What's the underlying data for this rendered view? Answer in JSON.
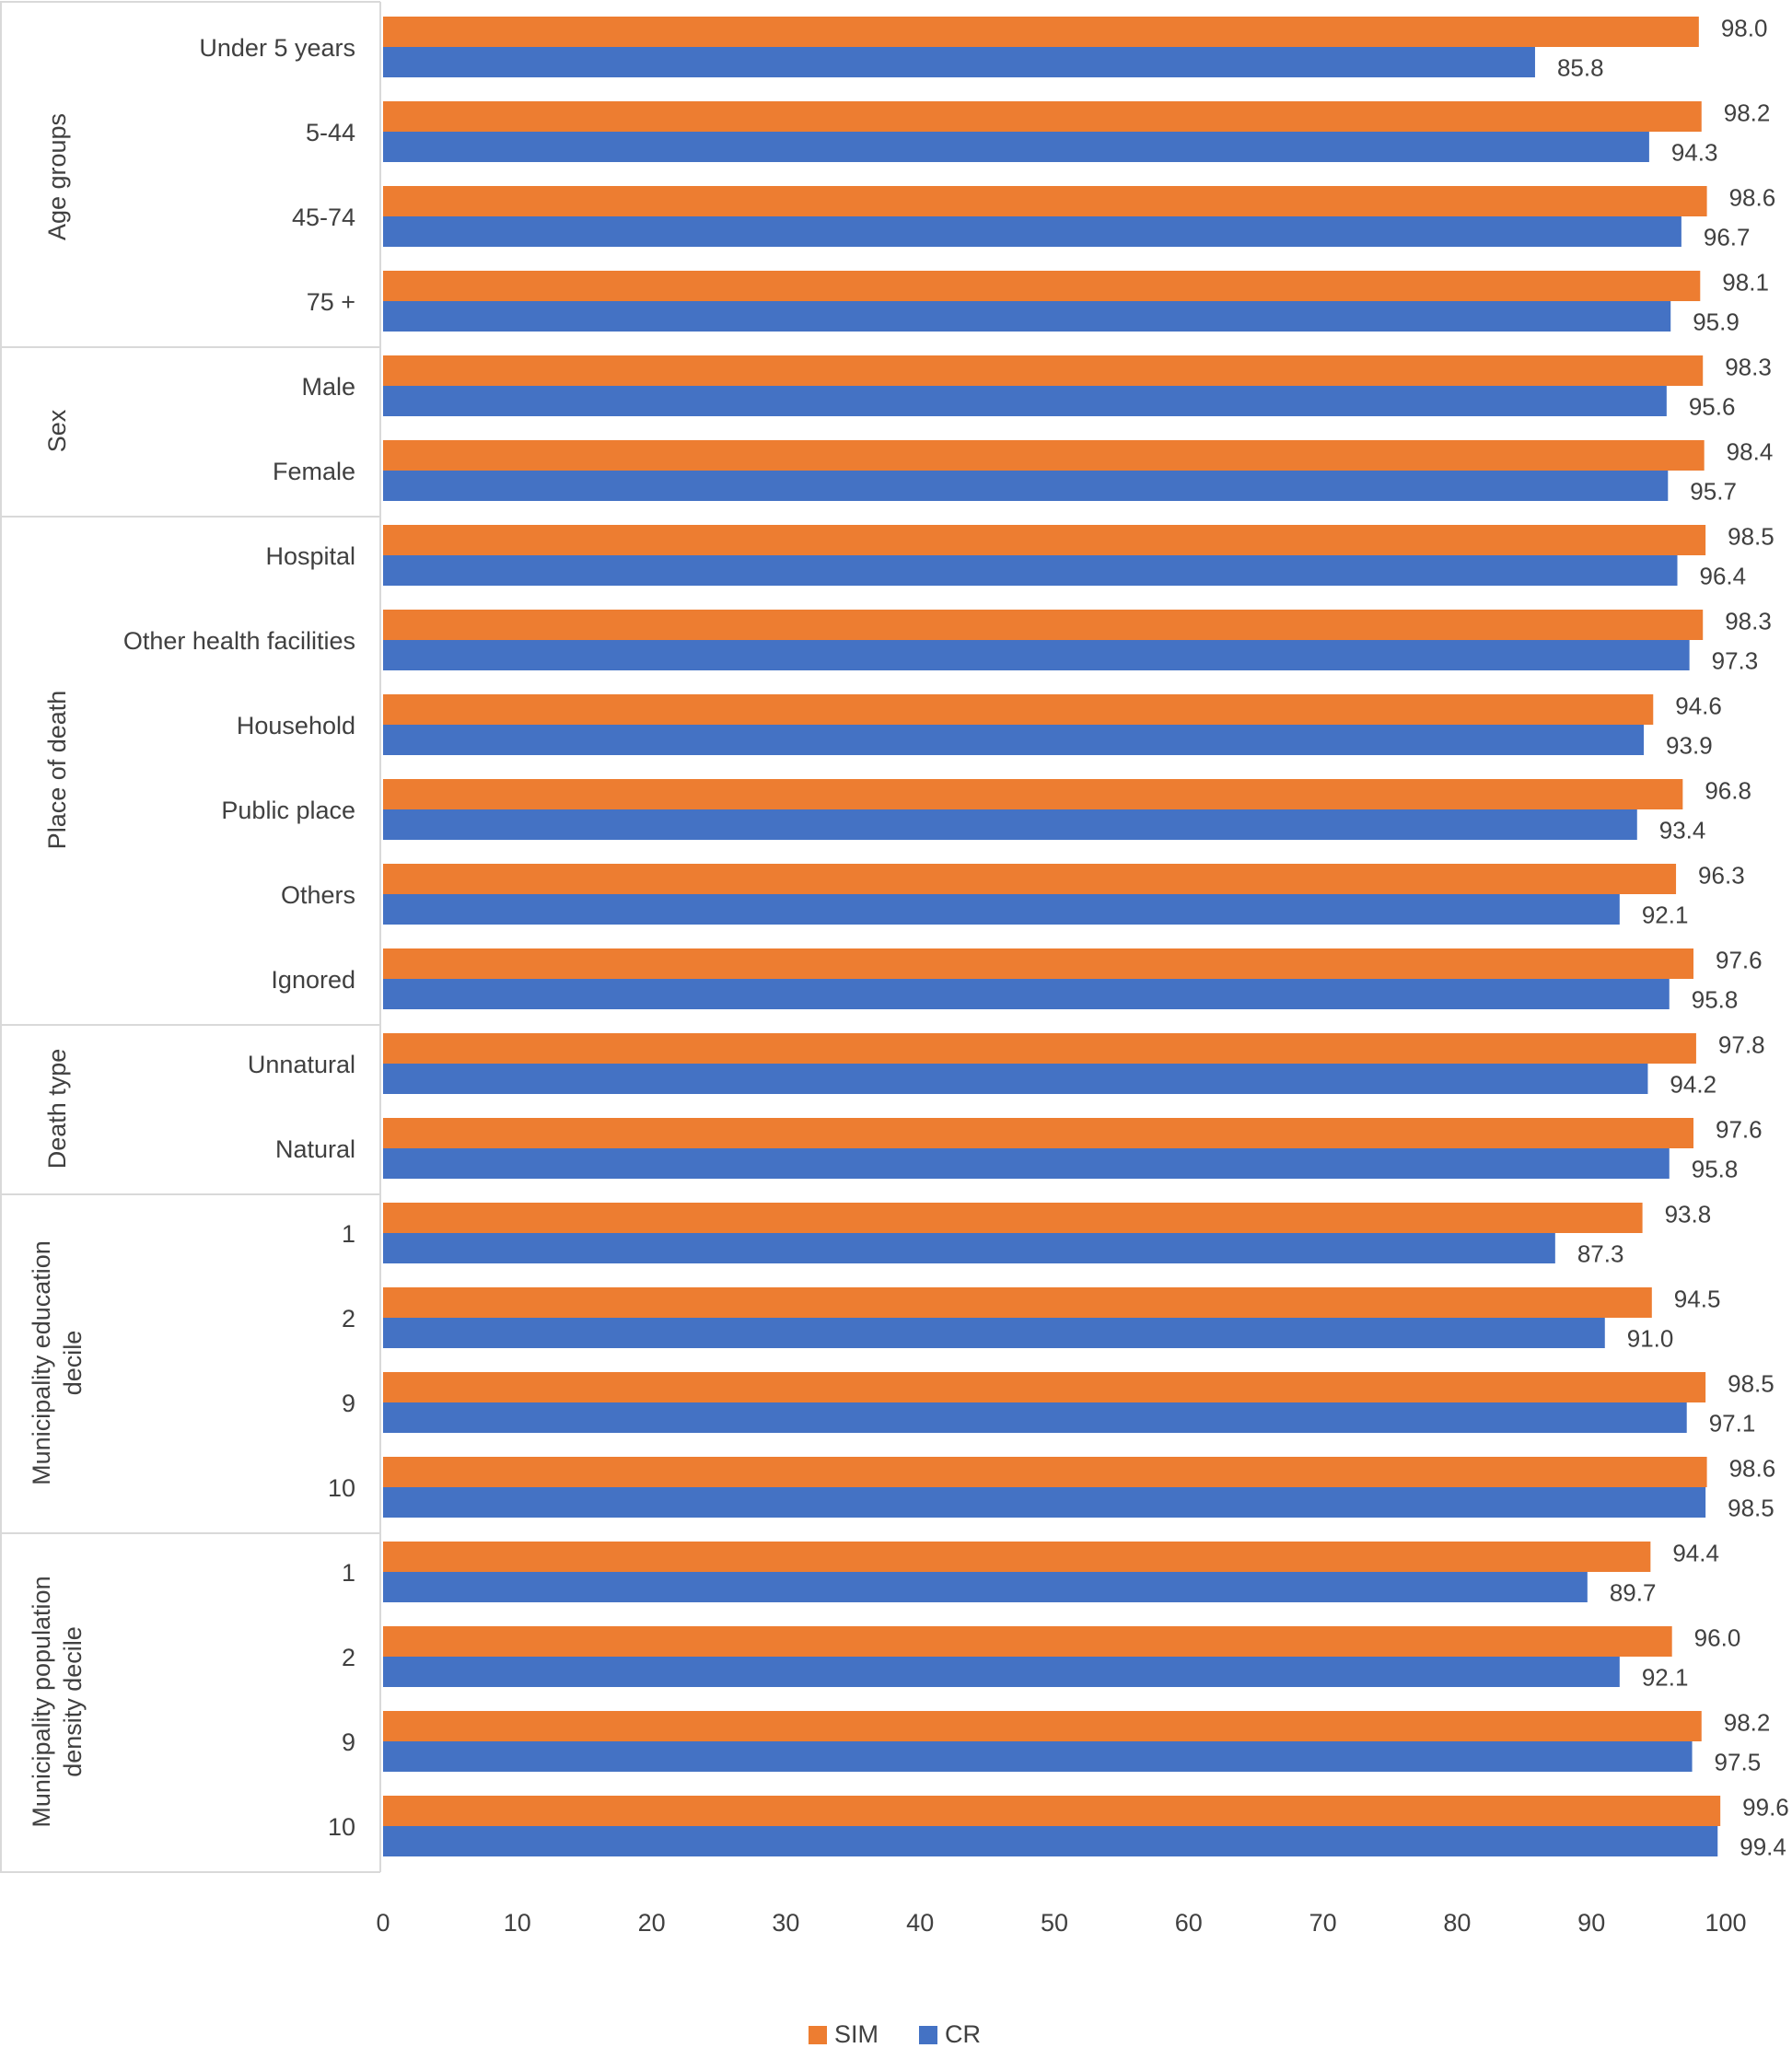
{
  "chart_data": {
    "type": "bar",
    "orientation": "horizontal",
    "xlim": [
      0,
      100
    ],
    "x_ticks": [
      "0",
      "10",
      "20",
      "30",
      "40",
      "50",
      "60",
      "70",
      "80",
      "90",
      "100"
    ],
    "legend": {
      "placement": "bottom",
      "entries": [
        "SIM",
        "CR"
      ]
    },
    "colors": {
      "SIM": "#ED7D31",
      "CR": "#4472C4"
    },
    "groups": [
      {
        "label": [
          "Age groups"
        ],
        "categories": [
          {
            "label": "Under 5 years",
            "SIM": 98.0,
            "CR": 85.8,
            "SIM_text": "98.0",
            "CR_text": "85.8"
          },
          {
            "label": "5-44",
            "SIM": 98.2,
            "CR": 94.3,
            "SIM_text": "98.2",
            "CR_text": "94.3"
          },
          {
            "label": "45-74",
            "SIM": 98.6,
            "CR": 96.7,
            "SIM_text": "98.6",
            "CR_text": "96.7"
          },
          {
            "label": "75 +",
            "SIM": 98.1,
            "CR": 95.9,
            "SIM_text": "98.1",
            "CR_text": "95.9"
          }
        ]
      },
      {
        "label": [
          "Sex"
        ],
        "categories": [
          {
            "label": "Male",
            "SIM": 98.3,
            "CR": 95.6,
            "SIM_text": "98.3",
            "CR_text": "95.6"
          },
          {
            "label": "Female",
            "SIM": 98.4,
            "CR": 95.7,
            "SIM_text": "98.4",
            "CR_text": "95.7"
          }
        ]
      },
      {
        "label": [
          "Place of death"
        ],
        "categories": [
          {
            "label": "Hospital",
            "SIM": 98.5,
            "CR": 96.4,
            "SIM_text": "98.5",
            "CR_text": "96.4"
          },
          {
            "label": "Other health facilities",
            "SIM": 98.3,
            "CR": 97.3,
            "SIM_text": "98.3",
            "CR_text": "97.3"
          },
          {
            "label": "Household",
            "SIM": 94.6,
            "CR": 93.9,
            "SIM_text": "94.6",
            "CR_text": "93.9"
          },
          {
            "label": "Public place",
            "SIM": 96.8,
            "CR": 93.4,
            "SIM_text": "96.8",
            "CR_text": "93.4"
          },
          {
            "label": "Others",
            "SIM": 96.3,
            "CR": 92.1,
            "SIM_text": "96.3",
            "CR_text": "92.1"
          },
          {
            "label": "Ignored",
            "SIM": 97.6,
            "CR": 95.8,
            "SIM_text": "97.6",
            "CR_text": "95.8"
          }
        ]
      },
      {
        "label": [
          "Death type"
        ],
        "categories": [
          {
            "label": "Unnatural",
            "SIM": 97.8,
            "CR": 94.2,
            "SIM_text": "97.8",
            "CR_text": "94.2"
          },
          {
            "label": "Natural",
            "SIM": 97.6,
            "CR": 95.8,
            "SIM_text": "97.6",
            "CR_text": "95.8"
          }
        ]
      },
      {
        "label": [
          "Municipality education",
          "decile"
        ],
        "categories": [
          {
            "label": "1",
            "SIM": 93.8,
            "CR": 87.3,
            "SIM_text": "93.8",
            "CR_text": "87.3"
          },
          {
            "label": "2",
            "SIM": 94.5,
            "CR": 91.0,
            "SIM_text": "94.5",
            "CR_text": "91.0"
          },
          {
            "label": "9",
            "SIM": 98.5,
            "CR": 97.1,
            "SIM_text": "98.5",
            "CR_text": "97.1"
          },
          {
            "label": "10",
            "SIM": 98.6,
            "CR": 98.5,
            "SIM_text": "98.6",
            "CR_text": "98.5"
          }
        ]
      },
      {
        "label": [
          "Municipality population",
          "density decile"
        ],
        "categories": [
          {
            "label": "1",
            "SIM": 94.4,
            "CR": 89.7,
            "SIM_text": "94.4",
            "CR_text": "89.7"
          },
          {
            "label": "2",
            "SIM": 96.0,
            "CR": 92.1,
            "SIM_text": "96.0",
            "CR_text": "92.1"
          },
          {
            "label": "9",
            "SIM": 98.2,
            "CR": 97.5,
            "SIM_text": "98.2",
            "CR_text": "97.5"
          },
          {
            "label": "10",
            "SIM": 99.6,
            "CR": 99.4,
            "SIM_text": "99.6",
            "CR_text": "99.4"
          }
        ]
      }
    ]
  }
}
